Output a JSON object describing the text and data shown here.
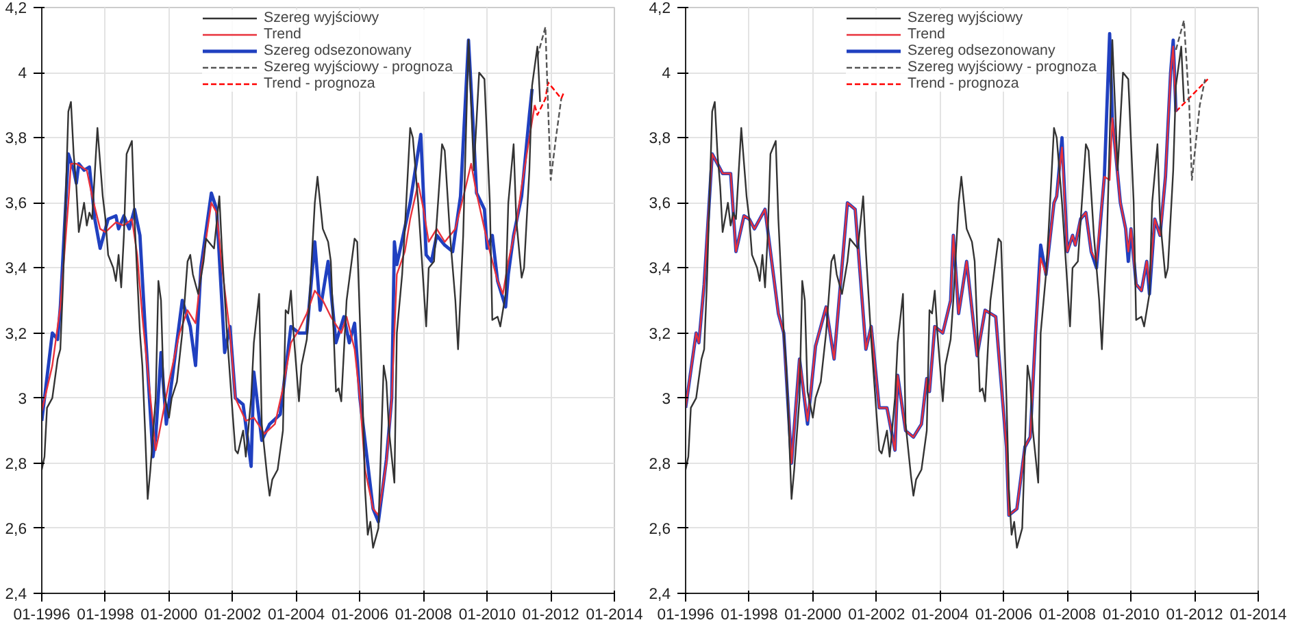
{
  "chart_data": [
    {
      "type": "line",
      "xlim": [
        "1996-01",
        "2014-01"
      ],
      "ylim": [
        2.4,
        4.2
      ],
      "xticks": [
        {
          "value": "1996-01",
          "label": "01-1996"
        },
        {
          "value": "1998-01",
          "label": "01-1998"
        },
        {
          "value": "2000-01",
          "label": "01-2000"
        },
        {
          "value": "2002-01",
          "label": "01-2002"
        },
        {
          "value": "2004-01",
          "label": "01-2004"
        },
        {
          "value": "2006-01",
          "label": "01-2006"
        },
        {
          "value": "2008-01",
          "label": "01-2008"
        },
        {
          "value": "2010-01",
          "label": "01-2010"
        },
        {
          "value": "2012-01",
          "label": "01-2012"
        },
        {
          "value": "2014-01",
          "label": "01-2014"
        }
      ],
      "yticks": [
        {
          "value": 2.4,
          "label": "2,4"
        },
        {
          "value": 2.6,
          "label": "2,6"
        },
        {
          "value": 2.8,
          "label": "2,8"
        },
        3,
        {
          "value": 3.2,
          "label": "3,2"
        },
        {
          "value": 3.4,
          "label": "3,4"
        },
        {
          "value": 3.6,
          "label": "3,6"
        },
        {
          "value": 3.8,
          "label": "3,8"
        },
        4,
        {
          "value": 4.2,
          "label": "4,2"
        }
      ],
      "grid": true,
      "legend": "top",
      "series": [
        {
          "name": "Szereg wyjściowy",
          "color": "#333333",
          "x": [
            "1996-01",
            "1996-02",
            "1996-03",
            "1996-05",
            "1996-07",
            "1996-08",
            "1996-09",
            "1996-11",
            "1996-12",
            "1997-01",
            "1997-02",
            "1997-03",
            "1997-05",
            "1997-06",
            "1997-07",
            "1997-08",
            "1997-10",
            "1997-12",
            "1998-01",
            "1998-02",
            "1998-04",
            "1998-05",
            "1998-06",
            "1998-07",
            "1998-08",
            "1998-09",
            "1998-11",
            "1998-12",
            "1999-02",
            "1999-03",
            "1999-04",
            "1999-05",
            "1999-06",
            "1999-08",
            "1999-09",
            "1999-10",
            "1999-11",
            "2000-01",
            "2000-02",
            "2000-04",
            "2000-06",
            "2000-08",
            "2000-09",
            "2000-10",
            "2000-12",
            "2001-02",
            "2001-03",
            "2001-05",
            "2001-06",
            "2001-08",
            "2001-09",
            "2001-11",
            "2002-01",
            "2002-02",
            "2002-03",
            "2002-05",
            "2002-06",
            "2002-08",
            "2002-09",
            "2002-11",
            "2002-12",
            "2003-02",
            "2003-03",
            "2003-04",
            "2003-06",
            "2003-08",
            "2003-09",
            "2003-10",
            "2003-11",
            "2003-12",
            "2004-02",
            "2004-03",
            "2004-05",
            "2004-06",
            "2004-08",
            "2004-09",
            "2004-11",
            "2005-01",
            "2005-02",
            "2005-04",
            "2005-05",
            "2005-06",
            "2005-08",
            "2005-11",
            "2005-12",
            "2006-02",
            "2006-03",
            "2006-04",
            "2006-05",
            "2006-06",
            "2006-08",
            "2006-10",
            "2006-11",
            "2006-12",
            "2007-02",
            "2007-03",
            "2007-05",
            "2007-06",
            "2007-08",
            "2007-09",
            "2007-11",
            "2008-02",
            "2008-03",
            "2008-05",
            "2008-08",
            "2008-09",
            "2008-11",
            "2009-01",
            "2009-02",
            "2009-04",
            "2009-06",
            "2009-08",
            "2009-10",
            "2009-12",
            "2010-02",
            "2010-03",
            "2010-05",
            "2010-06",
            "2010-08",
            "2010-09",
            "2010-11",
            "2010-12",
            "2011-02",
            "2011-03",
            "2011-05",
            "2011-06",
            "2011-08",
            "2011-09"
          ],
          "values": [
            2.78,
            2.82,
            2.97,
            3.0,
            3.12,
            3.15,
            3.35,
            3.88,
            3.91,
            3.75,
            3.65,
            3.51,
            3.6,
            3.53,
            3.57,
            3.55,
            3.83,
            3.62,
            3.55,
            3.44,
            3.4,
            3.36,
            3.44,
            3.34,
            3.5,
            3.75,
            3.79,
            3.55,
            3.2,
            3.1,
            2.9,
            2.69,
            2.78,
            3.0,
            3.36,
            3.3,
            3.02,
            2.94,
            3.0,
            3.05,
            3.2,
            3.42,
            3.44,
            3.38,
            3.32,
            3.42,
            3.49,
            3.47,
            3.46,
            3.62,
            3.45,
            3.18,
            2.95,
            2.84,
            2.83,
            2.9,
            2.82,
            3.0,
            3.17,
            3.32,
            2.92,
            2.76,
            2.7,
            2.75,
            2.78,
            2.9,
            3.27,
            3.26,
            3.33,
            3.2,
            2.99,
            3.1,
            3.18,
            3.3,
            3.6,
            3.68,
            3.52,
            3.48,
            3.42,
            3.02,
            3.03,
            2.99,
            3.3,
            3.49,
            3.48,
            3.0,
            2.72,
            2.58,
            2.62,
            2.54,
            2.6,
            3.1,
            3.05,
            2.9,
            2.74,
            3.2,
            3.38,
            3.52,
            3.83,
            3.8,
            3.6,
            3.22,
            3.4,
            3.42,
            3.78,
            3.76,
            3.5,
            3.3,
            3.15,
            3.5,
            4.1,
            3.7,
            4.0,
            3.98,
            3.6,
            3.24,
            3.25,
            3.22,
            3.32,
            3.6,
            3.78,
            3.55,
            3.37,
            3.4,
            3.7,
            3.96,
            4.08,
            3.91
          ]
        },
        {
          "name": "Trend",
          "color": "#e8313b",
          "x": [
            "1996-01",
            "1996-05",
            "1996-08",
            "1996-11",
            "1996-12",
            "1997-02",
            "1997-06",
            "1997-08",
            "1997-11",
            "1998-01",
            "1998-05",
            "1998-08",
            "1998-11",
            "1999-01",
            "1999-03",
            "1999-06",
            "1999-08",
            "1999-09",
            "2000-01",
            "2000-05",
            "2000-08",
            "2000-11",
            "2001-01",
            "2001-05",
            "2001-07",
            "2001-09",
            "2001-12",
            "2002-02",
            "2002-06",
            "2002-09",
            "2003-01",
            "2003-05",
            "2003-08",
            "2003-11",
            "2004-02",
            "2004-05",
            "2004-08",
            "2004-11",
            "2005-02",
            "2005-06",
            "2005-08",
            "2005-11",
            "2006-01",
            "2006-03",
            "2006-06",
            "2006-08",
            "2006-11",
            "2007-01",
            "2007-03",
            "2007-06",
            "2007-08",
            "2007-11",
            "2008-01",
            "2008-03",
            "2008-06",
            "2008-09",
            "2009-01",
            "2009-05",
            "2009-07",
            "2009-09",
            "2009-12",
            "2010-02",
            "2010-05",
            "2010-07",
            "2010-09",
            "2010-12",
            "2011-02",
            "2011-05",
            "2011-07"
          ],
          "values": [
            2.96,
            3.1,
            3.28,
            3.6,
            3.72,
            3.72,
            3.7,
            3.62,
            3.52,
            3.51,
            3.54,
            3.53,
            3.55,
            3.44,
            3.25,
            3.0,
            2.84,
            2.88,
            3.05,
            3.2,
            3.27,
            3.23,
            3.38,
            3.6,
            3.57,
            3.4,
            3.2,
            3.0,
            2.93,
            2.94,
            2.89,
            2.92,
            3.03,
            3.17,
            3.21,
            3.26,
            3.33,
            3.3,
            3.25,
            3.2,
            3.25,
            3.15,
            3.0,
            2.78,
            2.66,
            2.64,
            2.8,
            3.0,
            3.38,
            3.45,
            3.55,
            3.66,
            3.58,
            3.48,
            3.52,
            3.48,
            3.52,
            3.65,
            3.72,
            3.63,
            3.52,
            3.45,
            3.36,
            3.32,
            3.42,
            3.53,
            3.65,
            3.8,
            3.9
          ]
        },
        {
          "name": "Szereg odsezonowany",
          "color": "#2040c0",
          "x": [
            "1996-01",
            "1996-05",
            "1996-07",
            "1996-08",
            "1996-11",
            "1997-01",
            "1997-02",
            "1997-03",
            "1997-05",
            "1997-07",
            "1997-09",
            "1997-11",
            "1998-02",
            "1998-05",
            "1998-06",
            "1998-08",
            "1998-10",
            "1998-12",
            "1999-02",
            "1999-04",
            "1999-07",
            "1999-08",
            "1999-10",
            "1999-12",
            "2000-02",
            "2000-06",
            "2000-09",
            "2000-11",
            "2001-01",
            "2001-05",
            "2001-07",
            "2001-10",
            "2001-12",
            "2002-02",
            "2002-05",
            "2002-08",
            "2002-09",
            "2002-12",
            "2003-03",
            "2003-07",
            "2003-11",
            "2004-02",
            "2004-05",
            "2004-08",
            "2004-10",
            "2005-01",
            "2005-04",
            "2005-07",
            "2005-09",
            "2005-11",
            "2006-01",
            "2006-06",
            "2006-08",
            "2006-11",
            "2007-01",
            "2007-02",
            "2007-03",
            "2007-08",
            "2007-12",
            "2008-02",
            "2008-04",
            "2008-06",
            "2008-09",
            "2008-12",
            "2009-03",
            "2009-06",
            "2009-08",
            "2009-09",
            "2009-12",
            "2010-01",
            "2010-03",
            "2010-05",
            "2010-08",
            "2010-09",
            "2010-11",
            "2011-02",
            "2011-05",
            "2011-06"
          ],
          "values": [
            2.93,
            3.2,
            3.18,
            3.28,
            3.75,
            3.7,
            3.66,
            3.72,
            3.7,
            3.71,
            3.55,
            3.46,
            3.55,
            3.56,
            3.52,
            3.56,
            3.52,
            3.58,
            3.5,
            3.22,
            2.82,
            2.88,
            3.14,
            2.92,
            3.05,
            3.3,
            3.22,
            3.1,
            3.4,
            3.63,
            3.58,
            3.14,
            3.22,
            3.0,
            2.98,
            2.79,
            3.08,
            2.87,
            2.92,
            2.95,
            3.22,
            3.2,
            3.2,
            3.48,
            3.27,
            3.42,
            3.17,
            3.25,
            3.17,
            3.23,
            3.0,
            2.66,
            2.62,
            2.81,
            3.0,
            3.48,
            3.41,
            3.6,
            3.81,
            3.44,
            3.42,
            3.5,
            3.47,
            3.45,
            3.62,
            4.1,
            3.8,
            3.63,
            3.58,
            3.46,
            3.5,
            3.36,
            3.28,
            3.38,
            3.5,
            3.62,
            3.87,
            3.95
          ]
        },
        {
          "name": "Szereg wyjściowy - prognoza",
          "color": "#555555",
          "line_style": "dashed",
          "x": [
            "2011-08",
            "2011-11",
            "2011-12",
            "2012-01",
            "2012-03",
            "2012-05"
          ],
          "values": [
            4.05,
            4.14,
            3.9,
            3.67,
            3.8,
            3.92
          ]
        },
        {
          "name": "Trend - prognoza",
          "color": "#ff0000",
          "line_style": "dashed",
          "x": [
            "2011-07",
            "2011-08",
            "2011-11",
            "2011-12",
            "2012-02",
            "2012-05",
            "2012-06"
          ],
          "values": [
            3.9,
            3.87,
            3.92,
            3.97,
            3.95,
            3.92,
            3.94
          ]
        }
      ]
    },
    {
      "type": "line",
      "xlim": [
        "1996-01",
        "2014-01"
      ],
      "ylim": [
        2.4,
        4.2
      ],
      "xticks": [
        {
          "value": "1996-01",
          "label": "01-1996"
        },
        {
          "value": "1998-01",
          "label": "01-1998"
        },
        {
          "value": "2000-01",
          "label": "01-2000"
        },
        {
          "value": "2002-01",
          "label": "01-2002"
        },
        {
          "value": "2004-01",
          "label": "01-2004"
        },
        {
          "value": "2006-01",
          "label": "01-2006"
        },
        {
          "value": "2008-01",
          "label": "01-2008"
        },
        {
          "value": "2010-01",
          "label": "01-2010"
        },
        {
          "value": "2012-01",
          "label": "01-2012"
        },
        {
          "value": "2014-01",
          "label": "01-2014"
        }
      ],
      "yticks": [
        {
          "value": 2.4,
          "label": "2,4"
        },
        {
          "value": 2.6,
          "label": "2,6"
        },
        {
          "value": 2.8,
          "label": "2,8"
        },
        3,
        {
          "value": 3.2,
          "label": "3,2"
        },
        {
          "value": 3.4,
          "label": "3,4"
        },
        {
          "value": 3.6,
          "label": "3,6"
        },
        {
          "value": 3.8,
          "label": "3,8"
        },
        4,
        {
          "value": 4.2,
          "label": "4,2"
        }
      ],
      "grid": true,
      "legend": "top",
      "series": [
        {
          "name": "Szereg wyjściowy",
          "color": "#333333",
          "x": [
            "1996-01",
            "1996-02",
            "1996-03",
            "1996-05",
            "1996-07",
            "1996-08",
            "1996-09",
            "1996-11",
            "1996-12",
            "1997-01",
            "1997-02",
            "1997-03",
            "1997-05",
            "1997-06",
            "1997-07",
            "1997-08",
            "1997-10",
            "1997-12",
            "1998-01",
            "1998-02",
            "1998-04",
            "1998-05",
            "1998-06",
            "1998-07",
            "1998-08",
            "1998-09",
            "1998-11",
            "1998-12",
            "1999-02",
            "1999-03",
            "1999-04",
            "1999-05",
            "1999-06",
            "1999-08",
            "1999-09",
            "1999-10",
            "1999-11",
            "2000-01",
            "2000-02",
            "2000-04",
            "2000-06",
            "2000-08",
            "2000-09",
            "2000-10",
            "2000-12",
            "2001-02",
            "2001-03",
            "2001-05",
            "2001-06",
            "2001-08",
            "2001-09",
            "2001-11",
            "2002-01",
            "2002-02",
            "2002-03",
            "2002-05",
            "2002-06",
            "2002-08",
            "2002-09",
            "2002-11",
            "2002-12",
            "2003-02",
            "2003-03",
            "2003-04",
            "2003-06",
            "2003-08",
            "2003-09",
            "2003-10",
            "2003-11",
            "2003-12",
            "2004-02",
            "2004-03",
            "2004-05",
            "2004-06",
            "2004-08",
            "2004-09",
            "2004-11",
            "2005-01",
            "2005-02",
            "2005-04",
            "2005-05",
            "2005-06",
            "2005-08",
            "2005-11",
            "2005-12",
            "2006-02",
            "2006-03",
            "2006-04",
            "2006-05",
            "2006-06",
            "2006-08",
            "2006-10",
            "2006-11",
            "2006-12",
            "2007-02",
            "2007-03",
            "2007-05",
            "2007-06",
            "2007-08",
            "2007-09",
            "2007-11",
            "2008-02",
            "2008-03",
            "2008-05",
            "2008-08",
            "2008-09",
            "2008-11",
            "2009-01",
            "2009-02",
            "2009-04",
            "2009-06",
            "2009-08",
            "2009-10",
            "2009-12",
            "2010-02",
            "2010-03",
            "2010-05",
            "2010-06",
            "2010-08",
            "2010-09",
            "2010-11",
            "2010-12",
            "2011-02",
            "2011-03",
            "2011-05",
            "2011-06",
            "2011-08",
            "2011-09"
          ],
          "values": [
            2.78,
            2.82,
            2.97,
            3.0,
            3.12,
            3.15,
            3.35,
            3.88,
            3.91,
            3.75,
            3.65,
            3.51,
            3.6,
            3.53,
            3.57,
            3.55,
            3.83,
            3.62,
            3.55,
            3.44,
            3.4,
            3.36,
            3.44,
            3.34,
            3.5,
            3.75,
            3.79,
            3.55,
            3.2,
            3.1,
            2.9,
            2.69,
            2.78,
            3.0,
            3.36,
            3.3,
            3.02,
            2.94,
            3.0,
            3.05,
            3.2,
            3.42,
            3.44,
            3.38,
            3.32,
            3.42,
            3.49,
            3.47,
            3.46,
            3.62,
            3.45,
            3.18,
            2.95,
            2.84,
            2.83,
            2.9,
            2.82,
            3.0,
            3.17,
            3.32,
            2.92,
            2.76,
            2.7,
            2.75,
            2.78,
            2.9,
            3.27,
            3.26,
            3.33,
            3.2,
            2.99,
            3.1,
            3.18,
            3.3,
            3.6,
            3.68,
            3.52,
            3.48,
            3.42,
            3.02,
            3.03,
            2.99,
            3.3,
            3.49,
            3.48,
            3.0,
            2.72,
            2.58,
            2.62,
            2.54,
            2.6,
            3.1,
            3.05,
            2.9,
            2.74,
            3.2,
            3.38,
            3.52,
            3.83,
            3.8,
            3.6,
            3.22,
            3.4,
            3.42,
            3.78,
            3.76,
            3.5,
            3.3,
            3.15,
            3.5,
            4.1,
            3.7,
            4.0,
            3.98,
            3.6,
            3.24,
            3.25,
            3.22,
            3.32,
            3.6,
            3.78,
            3.55,
            3.37,
            3.4,
            3.7,
            3.96,
            4.08,
            3.91
          ]
        },
        {
          "name": "Trend",
          "color": "#e8313b",
          "x": [
            "1996-01",
            "1996-05",
            "1996-06",
            "1996-08",
            "1996-11",
            "1997-01",
            "1997-03",
            "1997-06",
            "1997-08",
            "1997-11",
            "1998-01",
            "1998-03",
            "1998-07",
            "1998-12",
            "1999-02",
            "1999-05",
            "1999-08",
            "1999-11",
            "2000-02",
            "2000-06",
            "2000-09",
            "2001-02",
            "2001-05",
            "2001-09",
            "2001-11",
            "2002-02",
            "2002-05",
            "2002-08",
            "2002-09",
            "2002-12",
            "2003-03",
            "2003-06",
            "2003-08",
            "2003-09",
            "2003-11",
            "2004-02",
            "2004-05",
            "2004-06",
            "2004-08",
            "2004-11",
            "2005-03",
            "2005-06",
            "2005-10",
            "2005-12",
            "2006-02",
            "2006-03",
            "2006-06",
            "2006-09",
            "2006-11",
            "2007-01",
            "2007-03",
            "2007-05",
            "2007-08",
            "2007-09",
            "2007-11",
            "2008-01",
            "2008-03",
            "2008-04",
            "2008-06",
            "2008-08",
            "2008-10",
            "2008-12",
            "2009-03",
            "2009-05",
            "2009-06",
            "2009-09",
            "2009-11",
            "2009-12",
            "2010-01",
            "2010-03",
            "2010-05",
            "2010-07",
            "2010-08",
            "2010-10",
            "2010-12",
            "2011-02",
            "2011-04",
            "2011-05",
            "2011-06"
          ],
          "values": [
            2.97,
            3.2,
            3.17,
            3.35,
            3.75,
            3.72,
            3.69,
            3.69,
            3.45,
            3.56,
            3.55,
            3.52,
            3.58,
            3.26,
            3.2,
            2.8,
            3.12,
            2.93,
            3.16,
            3.28,
            3.12,
            3.6,
            3.58,
            3.15,
            3.22,
            2.97,
            2.97,
            2.84,
            3.07,
            2.9,
            2.88,
            2.92,
            3.06,
            3.02,
            3.22,
            3.2,
            3.3,
            3.5,
            3.26,
            3.42,
            3.13,
            3.27,
            3.25,
            3.05,
            2.85,
            2.64,
            2.66,
            2.85,
            2.88,
            3.2,
            3.43,
            3.38,
            3.6,
            3.62,
            3.77,
            3.45,
            3.5,
            3.47,
            3.55,
            3.57,
            3.45,
            3.42,
            3.68,
            3.67,
            3.86,
            3.6,
            3.52,
            3.45,
            3.52,
            3.35,
            3.33,
            3.42,
            3.35,
            3.55,
            3.5,
            3.68,
            4.0,
            4.08,
            3.88
          ]
        },
        {
          "name": "Szereg odsezonowany",
          "color": "#2040c0",
          "x": [
            "1996-01",
            "1996-05",
            "1996-06",
            "1996-08",
            "1996-11",
            "1997-01",
            "1997-03",
            "1997-06",
            "1997-08",
            "1997-11",
            "1998-01",
            "1998-03",
            "1998-07",
            "1998-12",
            "1999-02",
            "1999-05",
            "1999-08",
            "1999-11",
            "2000-02",
            "2000-06",
            "2000-09",
            "2001-02",
            "2001-05",
            "2001-09",
            "2001-11",
            "2002-02",
            "2002-05",
            "2002-08",
            "2002-09",
            "2002-12",
            "2003-03",
            "2003-06",
            "2003-08",
            "2003-09",
            "2003-11",
            "2004-02",
            "2004-05",
            "2004-06",
            "2004-08",
            "2004-11",
            "2005-03",
            "2005-06",
            "2005-10",
            "2005-12",
            "2006-02",
            "2006-03",
            "2006-06",
            "2006-09",
            "2006-11",
            "2007-01",
            "2007-03",
            "2007-05",
            "2007-08",
            "2007-09",
            "2007-11",
            "2008-01",
            "2008-03",
            "2008-04",
            "2008-06",
            "2008-08",
            "2008-10",
            "2008-12",
            "2009-03",
            "2009-05",
            "2009-06",
            "2009-09",
            "2009-11",
            "2009-12",
            "2010-01",
            "2010-03",
            "2010-05",
            "2010-07",
            "2010-08",
            "2010-10",
            "2010-12",
            "2011-02",
            "2011-04",
            "2011-05",
            "2011-06"
          ],
          "values": [
            2.97,
            3.2,
            3.17,
            3.35,
            3.75,
            3.72,
            3.69,
            3.69,
            3.45,
            3.56,
            3.55,
            3.52,
            3.58,
            3.26,
            3.2,
            2.8,
            3.12,
            2.92,
            3.16,
            3.28,
            3.12,
            3.6,
            3.58,
            3.15,
            3.22,
            2.97,
            2.97,
            2.84,
            3.07,
            2.9,
            2.88,
            2.92,
            3.06,
            3.02,
            3.22,
            3.2,
            3.3,
            3.5,
            3.26,
            3.42,
            3.13,
            3.27,
            3.25,
            3.05,
            2.85,
            2.64,
            2.66,
            2.85,
            2.88,
            3.2,
            3.47,
            3.38,
            3.6,
            3.62,
            3.8,
            3.45,
            3.5,
            3.47,
            3.55,
            3.57,
            3.45,
            3.4,
            3.68,
            4.12,
            3.86,
            3.6,
            3.52,
            3.42,
            3.52,
            3.35,
            3.33,
            3.42,
            3.32,
            3.55,
            3.5,
            3.68,
            4.0,
            4.1,
            3.88
          ]
        },
        {
          "name": "Szereg wyjściowy - prognoza",
          "color": "#555555",
          "line_style": "dashed",
          "x": [
            "2011-06",
            "2011-09",
            "2011-11",
            "2011-12",
            "2012-03",
            "2012-05"
          ],
          "values": [
            4.07,
            4.16,
            3.9,
            3.67,
            3.9,
            3.98
          ]
        },
        {
          "name": "Trend - prognoza",
          "color": "#ff0000",
          "line_style": "dashed",
          "x": [
            "2011-06",
            "2012-06"
          ],
          "values": [
            3.88,
            3.98
          ]
        }
      ]
    }
  ]
}
